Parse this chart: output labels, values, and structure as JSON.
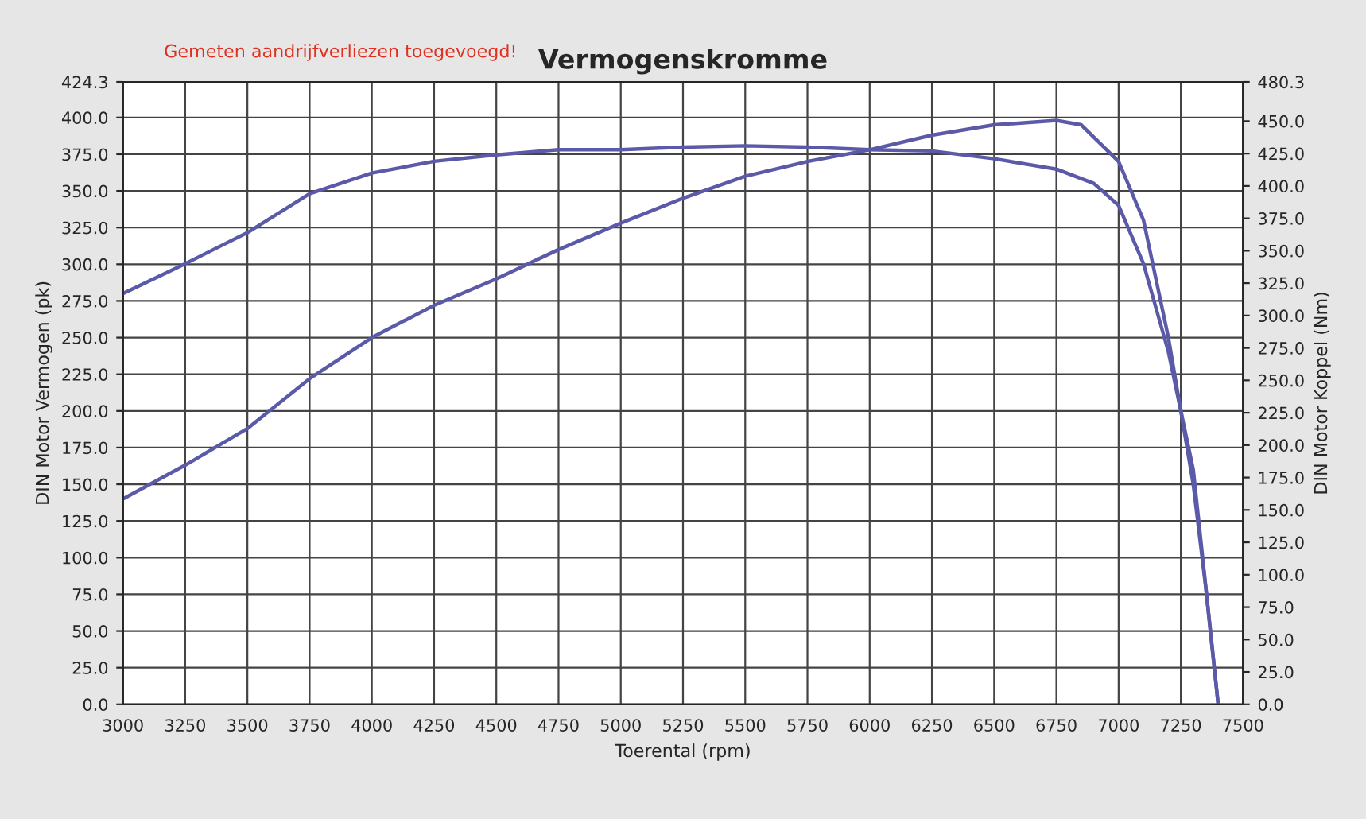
{
  "chart_data": {
    "type": "line",
    "title": "Vermogenskromme",
    "xlabel": "Toerental (rpm)",
    "ylabel": "DIN Motor Vermogen (pk)",
    "y2label": "DIN Motor Koppel (Nm)",
    "annotations": [
      "Gemeten aandrijfverliezen toegevoegd!"
    ],
    "grid": true,
    "marker": "none",
    "line_style": "solid",
    "xlim": [
      3000,
      7500
    ],
    "xticks": [
      3000,
      3250,
      3500,
      3750,
      4000,
      4250,
      4500,
      4750,
      5000,
      5250,
      5500,
      5750,
      6000,
      6250,
      6500,
      6750,
      7000,
      7250,
      7500
    ],
    "ylim": [
      0,
      424.3
    ],
    "yticks": [
      {
        "value": 0,
        "label": "0.0"
      },
      {
        "value": 25,
        "label": "25.0"
      },
      {
        "value": 50,
        "label": "50.0"
      },
      {
        "value": 75,
        "label": "75.0"
      },
      {
        "value": 100,
        "label": "100.0"
      },
      {
        "value": 125,
        "label": "125.0"
      },
      {
        "value": 150,
        "label": "150.0"
      },
      {
        "value": 175,
        "label": "175.0"
      },
      {
        "value": 200,
        "label": "200.0"
      },
      {
        "value": 225,
        "label": "225.0"
      },
      {
        "value": 250,
        "label": "250.0"
      },
      {
        "value": 275,
        "label": "275.0"
      },
      {
        "value": 300,
        "label": "300.0"
      },
      {
        "value": 325,
        "label": "325.0"
      },
      {
        "value": 350,
        "label": "350.0"
      },
      {
        "value": 375,
        "label": "375.0"
      },
      {
        "value": 400,
        "label": "400.0"
      },
      {
        "value": 424.3,
        "label": "424.3"
      }
    ],
    "y2lim": [
      0,
      480.3
    ],
    "y2ticks": [
      {
        "value": 0,
        "label": "0.0"
      },
      {
        "value": 25,
        "label": "25.0"
      },
      {
        "value": 50,
        "label": "50.0"
      },
      {
        "value": 75,
        "label": "75.0"
      },
      {
        "value": 100,
        "label": "100.0"
      },
      {
        "value": 125,
        "label": "125.0"
      },
      {
        "value": 150,
        "label": "150.0"
      },
      {
        "value": 175,
        "label": "175.0"
      },
      {
        "value": 200,
        "label": "200.0"
      },
      {
        "value": 225,
        "label": "225.0"
      },
      {
        "value": 250,
        "label": "250.0"
      },
      {
        "value": 275,
        "label": "275.0"
      },
      {
        "value": 300,
        "label": "300.0"
      },
      {
        "value": 325,
        "label": "325.0"
      },
      {
        "value": 350,
        "label": "350.0"
      },
      {
        "value": 375,
        "label": "375.0"
      },
      {
        "value": 400,
        "label": "400.0"
      },
      {
        "value": 425,
        "label": "425.0"
      },
      {
        "value": 450,
        "label": "450.0"
      },
      {
        "value": 480.3,
        "label": "480.3"
      }
    ],
    "series": [
      {
        "color": "#5a5aa8",
        "x": [
          3000,
          3250,
          3500,
          3750,
          4000,
          4250,
          4500,
          4750,
          5000,
          5250,
          5500,
          5750,
          6000,
          6250,
          6500,
          6750,
          6850,
          7000,
          7100,
          7200,
          7300,
          7350,
          7400
        ],
        "values": [
          140,
          163,
          188,
          222,
          250,
          272,
          290,
          310,
          328,
          345,
          360,
          370,
          378,
          388,
          395,
          398,
          395,
          370,
          330,
          250,
          150,
          80,
          0
        ]
      },
      {
        "color": "#5a5aa8",
        "axis": "y2",
        "x": [
          3000,
          3250,
          3500,
          3750,
          4000,
          4250,
          4500,
          4750,
          5000,
          5250,
          5500,
          5750,
          6000,
          6250,
          6500,
          6750,
          6900,
          7000,
          7100,
          7200,
          7300,
          7350,
          7400
        ],
        "values": [
          317,
          340,
          364,
          394,
          410,
          419,
          424,
          428,
          428,
          430,
          431,
          430,
          428,
          427,
          421,
          413,
          402,
          385,
          340,
          272,
          181,
          91,
          0
        ]
      }
    ]
  }
}
